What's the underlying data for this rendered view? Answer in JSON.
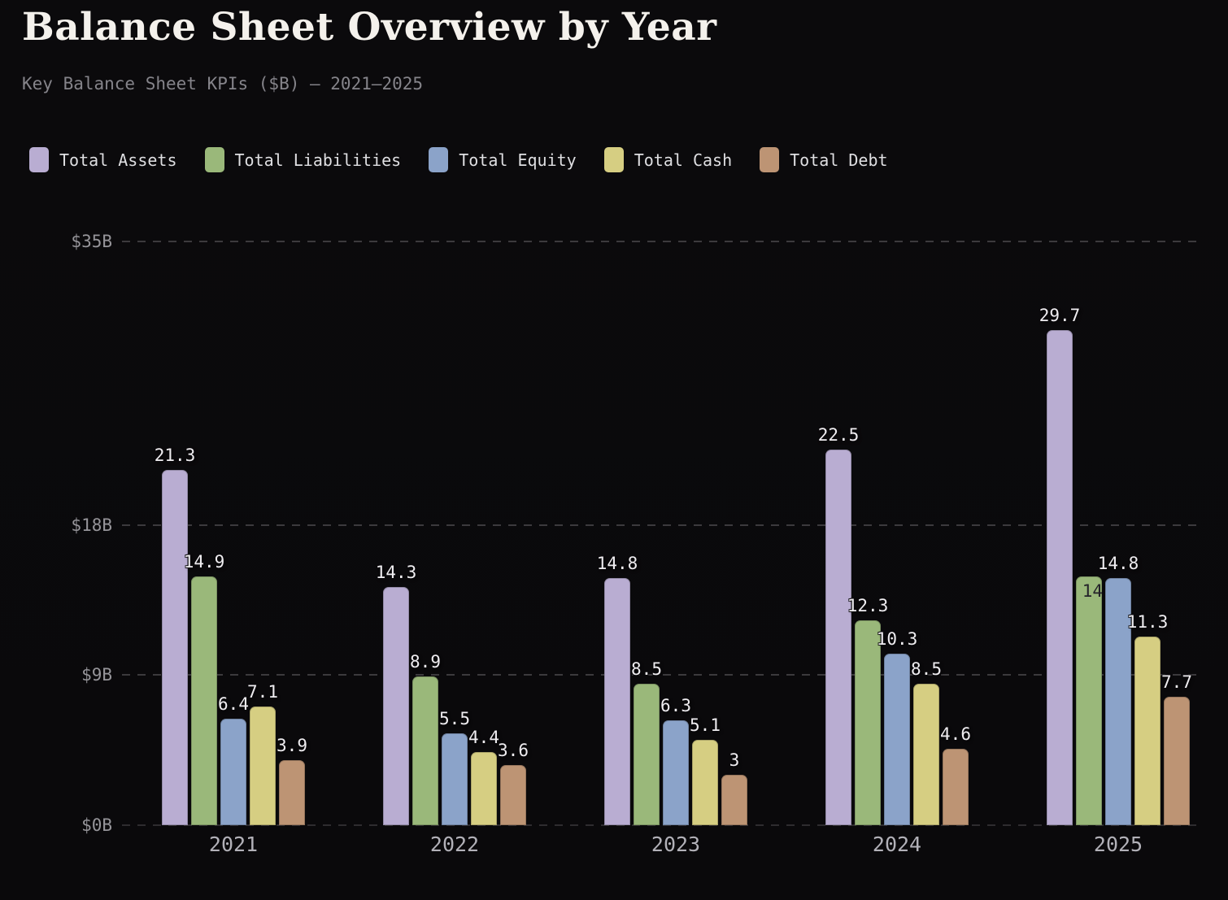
{
  "chart_data": {
    "type": "bar",
    "title": "Balance Sheet Overview by Year",
    "subtitle": "Key Balance Sheet KPIs ($B) — 2021–2025",
    "categories": [
      "2021",
      "2022",
      "2023",
      "2024",
      "2025"
    ],
    "series": [
      {
        "name": "Total Assets",
        "color": "#b9add2",
        "values": [
          21.3,
          14.3,
          14.8,
          22.5,
          29.7
        ]
      },
      {
        "name": "Total Liabilities",
        "color": "#9ab87a",
        "values": [
          14.9,
          8.9,
          8.5,
          12.3,
          14.9
        ]
      },
      {
        "name": "Total Equity",
        "color": "#8ba3c9",
        "values": [
          6.4,
          5.5,
          6.3,
          10.3,
          14.8
        ]
      },
      {
        "name": "Total Cash",
        "color": "#d6ce82",
        "values": [
          7.1,
          4.4,
          5.1,
          8.5,
          11.3
        ]
      },
      {
        "name": "Total Debt",
        "color": "#bd9474",
        "values": [
          3.9,
          3.6,
          3,
          4.6,
          7.7
        ]
      }
    ],
    "xlabel": "",
    "ylabel": "",
    "ylim": [
      0,
      35
    ],
    "yticks": [
      {
        "value": 0,
        "label": "$0B"
      },
      {
        "value": 9,
        "label": "$9B"
      },
      {
        "value": 18,
        "label": "$18B"
      },
      {
        "value": 35,
        "label": "$35B"
      }
    ],
    "grid": {
      "style": "dashed",
      "orientation": "horizontal"
    },
    "legend_position": "top-left",
    "value_labels_shown": true,
    "value_label_overrides": [
      {
        "series_index": 1,
        "category_index": 4,
        "placement": "inside-dimmed"
      }
    ]
  },
  "colors": {
    "background": "#0b0a0c",
    "grid_line": "#3c3a3d",
    "axis_line": "#2e2c2f",
    "title": "#f4f1ec",
    "subtitle": "#85848a",
    "tick_label": "#96959a",
    "year_label": "#b2b1b8",
    "value_label": "#efedf0",
    "value_label_inside": "#242229",
    "legend_label": "#dfdfe2"
  }
}
